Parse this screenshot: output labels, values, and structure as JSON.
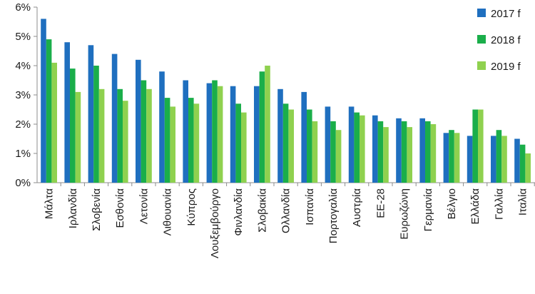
{
  "chart_data": {
    "type": "bar",
    "ylim": [
      0,
      6
    ],
    "yticks": [
      "0%",
      "1%",
      "2%",
      "3%",
      "4%",
      "5%",
      "6%"
    ],
    "grid": false,
    "legend_position": "top-right",
    "categories": [
      "Μάλτα",
      "Ιρλανδία",
      "Σλοβενία",
      "Εσθονία",
      "Λετονία",
      "Λιθουανία",
      "Κύπρος",
      "Λουξεμβούργο",
      "Φινλανδία",
      "Σλοβακία",
      "Ολλανδία",
      "Ισπανία",
      "Πορτογαλία",
      "Αυστρία",
      "ΕΕ-28",
      "Ευρωζώνη",
      "Γερμανία",
      "Βέλγιο",
      "Ελλάδα",
      "Γαλλία",
      "Ιταλία"
    ],
    "series": [
      {
        "name": "2017 f",
        "color": "#1f6fbf",
        "values": [
          5.6,
          4.8,
          4.7,
          4.4,
          4.2,
          3.8,
          3.5,
          3.4,
          3.3,
          3.3,
          3.2,
          3.1,
          2.6,
          2.6,
          2.3,
          2.2,
          2.2,
          1.7,
          1.6,
          1.6,
          1.5
        ]
      },
      {
        "name": "2018 f",
        "color": "#1aae4a",
        "values": [
          4.9,
          3.9,
          4.0,
          3.2,
          3.5,
          2.9,
          2.9,
          3.5,
          2.7,
          3.8,
          2.7,
          2.5,
          2.1,
          2.4,
          2.1,
          2.1,
          2.1,
          1.8,
          2.5,
          1.8,
          1.3
        ]
      },
      {
        "name": "2019 f",
        "color": "#8fd14f",
        "values": [
          4.1,
          3.1,
          3.2,
          2.8,
          3.2,
          2.6,
          2.7,
          3.3,
          2.4,
          4.0,
          2.5,
          2.1,
          1.8,
          2.3,
          1.9,
          1.9,
          2.0,
          1.7,
          2.5,
          1.6,
          1.0
        ]
      }
    ]
  }
}
